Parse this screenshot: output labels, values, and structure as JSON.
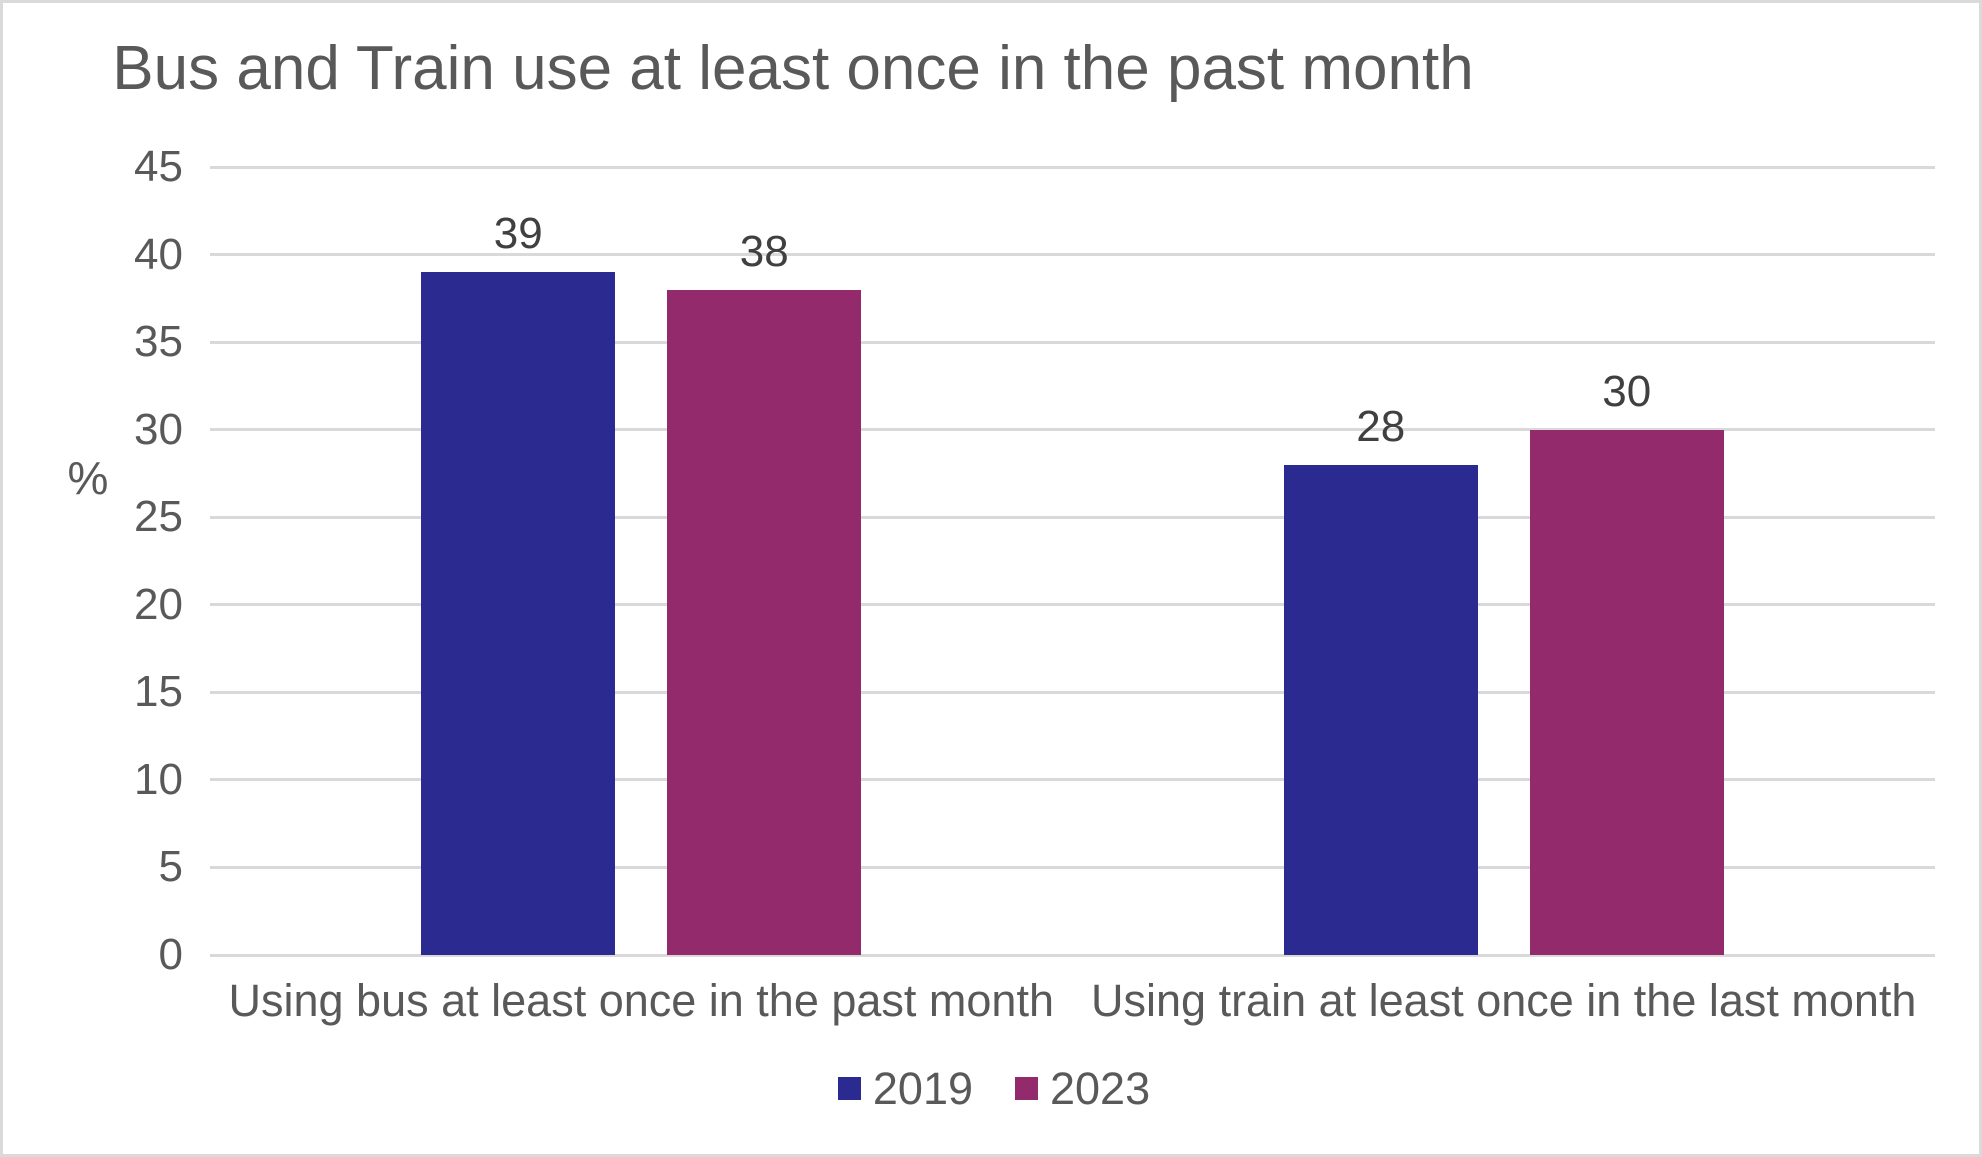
{
  "chart_data": {
    "type": "bar",
    "title": "Bus and Train use at least once in the past month",
    "ylabel": "%",
    "xlabel": "",
    "categories": [
      "Using bus at least once in the past month",
      "Using train at least once in the last month"
    ],
    "series": [
      {
        "name": "2019",
        "color": "#2b2a91",
        "values": [
          39,
          28
        ]
      },
      {
        "name": "2023",
        "color": "#922a6b",
        "values": [
          38,
          30
        ]
      }
    ],
    "data_labels": [
      [
        "39",
        "38"
      ],
      [
        "28",
        "30"
      ]
    ],
    "ylim": [
      0,
      45
    ],
    "yticks": [
      45,
      40,
      35,
      30,
      25,
      20,
      15,
      10,
      5,
      0
    ],
    "grid": true,
    "legend_position": "bottom"
  },
  "colors": {
    "background": "#ffffff",
    "border": "#dadada",
    "gridline": "#d9d9d9",
    "title_text": "#595959",
    "axis_text": "#595959",
    "data_label_text": "#404040"
  }
}
